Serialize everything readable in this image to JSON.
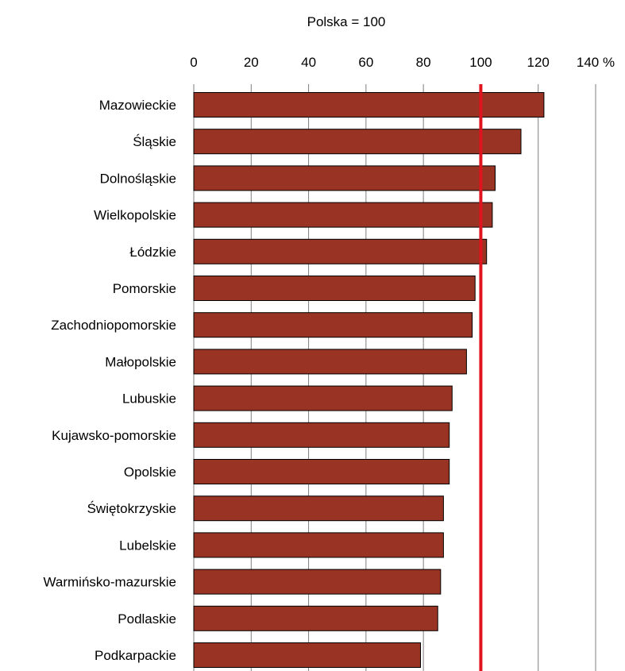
{
  "chart_data": {
    "type": "bar",
    "orientation": "horizontal",
    "subtitle": "Polska = 100",
    "categories": [
      "Mazowieckie",
      "Śląskie",
      "Dolnośląskie",
      "Wielkopolskie",
      "Łódzkie",
      "Pomorskie",
      "Zachodniopomorskie",
      "Małopolskie",
      "Lubuskie",
      "Kujawsko-pomorskie",
      "Opolskie",
      "Świętokrzyskie",
      "Lubelskie",
      "Warmińsko-mazurskie",
      "Podlaskie",
      "Podkarpackie"
    ],
    "values": [
      122,
      114,
      105,
      104,
      102,
      98,
      97,
      95,
      90,
      89,
      89,
      87,
      87,
      86,
      85,
      79
    ],
    "xlim": [
      0,
      140
    ],
    "xticks": [
      0,
      20,
      40,
      60,
      80,
      100,
      120,
      140
    ],
    "xtick_labels": [
      "0",
      "20",
      "40",
      "60",
      "80",
      "100",
      "120",
      "140 %"
    ],
    "axis_position": "top",
    "grid": true,
    "reference_line": 100,
    "colors": {
      "bar": "#993324",
      "bar_edge": "#000000",
      "reference_line": "#e0141e",
      "grid": "#7f7f7f"
    }
  }
}
